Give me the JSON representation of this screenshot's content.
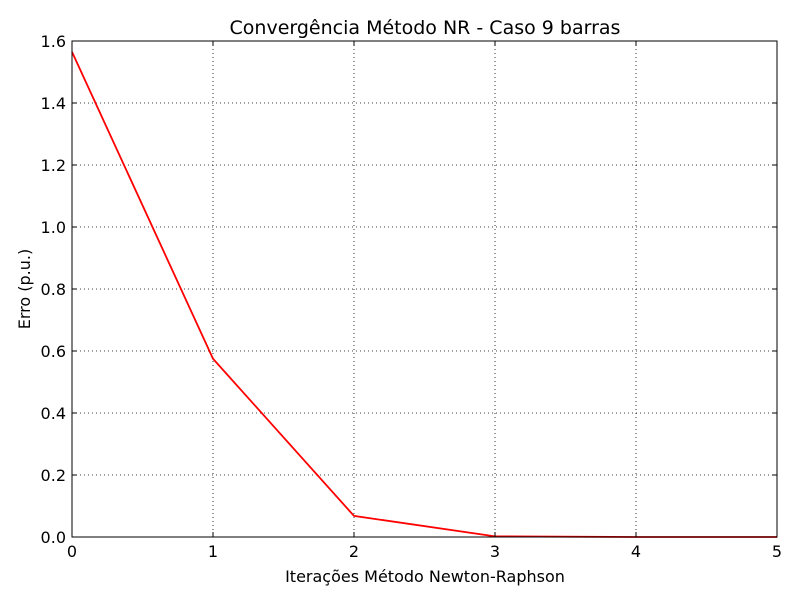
{
  "chart_data": {
    "type": "line",
    "title": "Convergência Método NR - Caso 9 barras",
    "xlabel": "Iterações Método Newton-Raphson",
    "ylabel": "Erro (p.u.)",
    "xlim": [
      0,
      5
    ],
    "ylim": [
      0,
      1.6
    ],
    "x_ticks": [
      "0",
      "1",
      "2",
      "3",
      "4",
      "5"
    ],
    "y_ticks": [
      "0.0",
      "0.2",
      "0.4",
      "0.6",
      "0.8",
      "1.0",
      "1.2",
      "1.4",
      "1.6"
    ],
    "grid": true,
    "grid_style": "dotted",
    "series": [
      {
        "color": "#ff0000",
        "x": [
          0,
          1,
          2,
          3,
          4,
          5
        ],
        "y": [
          1.565,
          0.575,
          0.068,
          0.002,
          0.0,
          0.0
        ]
      }
    ]
  }
}
